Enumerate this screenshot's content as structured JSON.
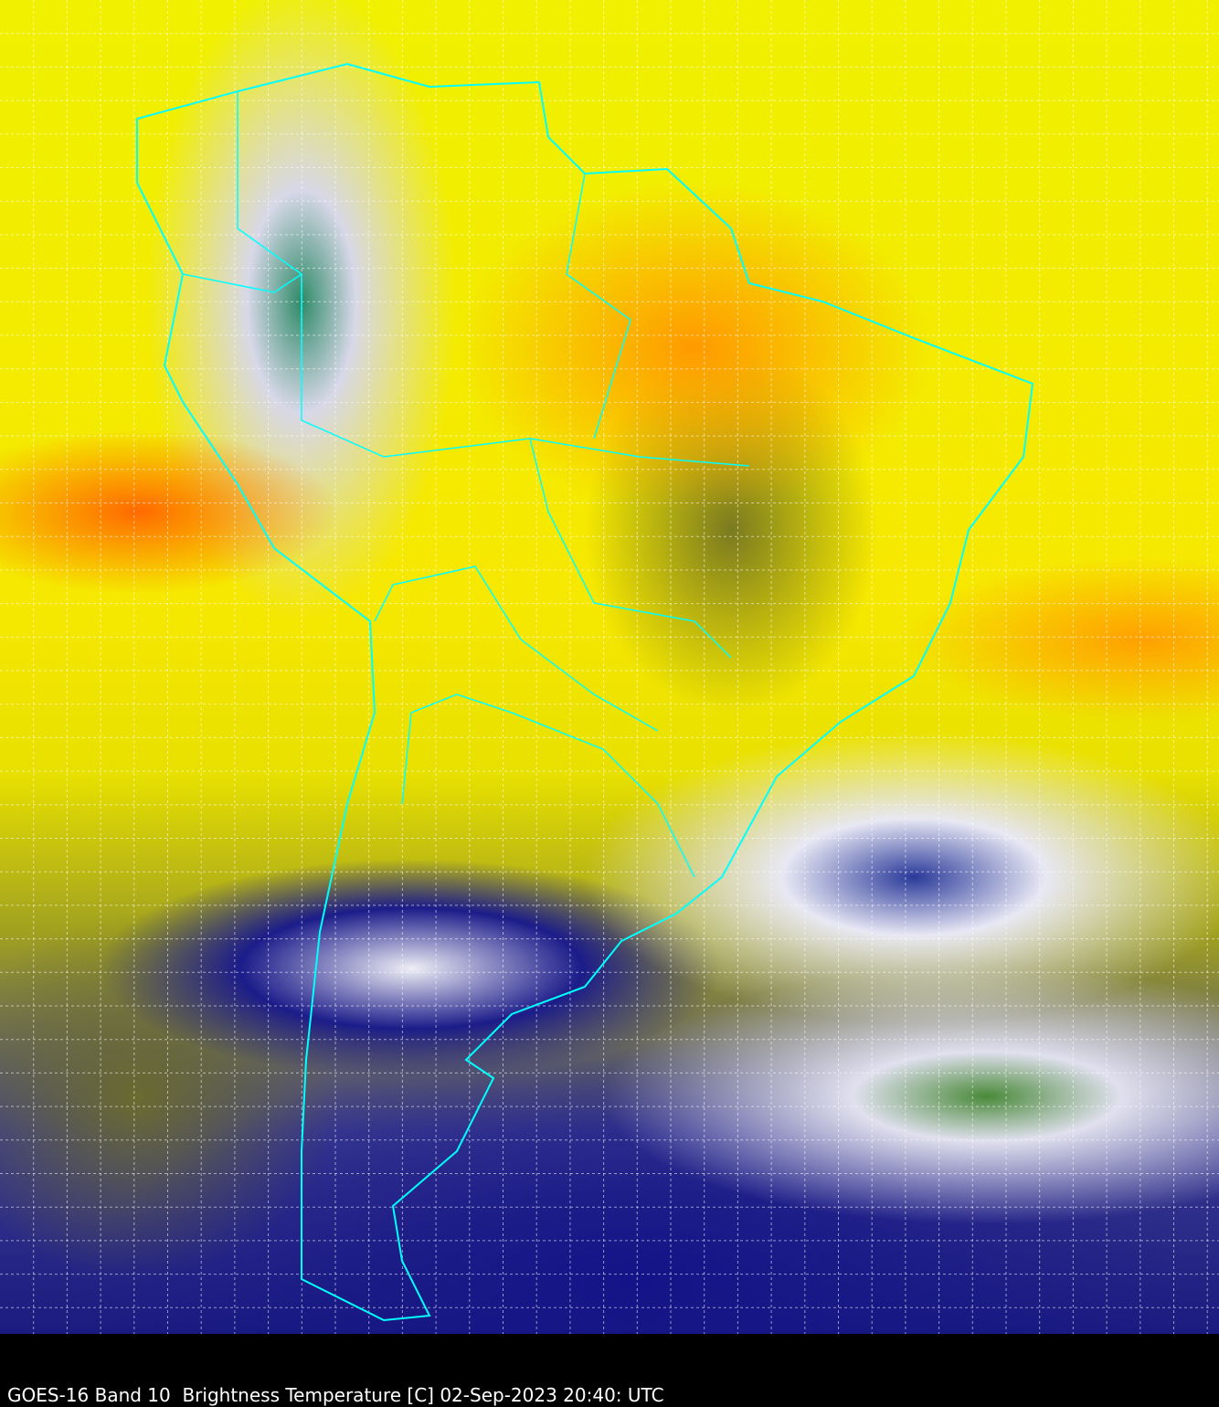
{
  "caption": "GOES-16 Band 10  Brightness Temperature [C] 02-Sep-2023 20:40: UTC",
  "colors": {
    "coastline": "#00ffff",
    "grid": "#ffffff",
    "background": "#000000"
  }
}
